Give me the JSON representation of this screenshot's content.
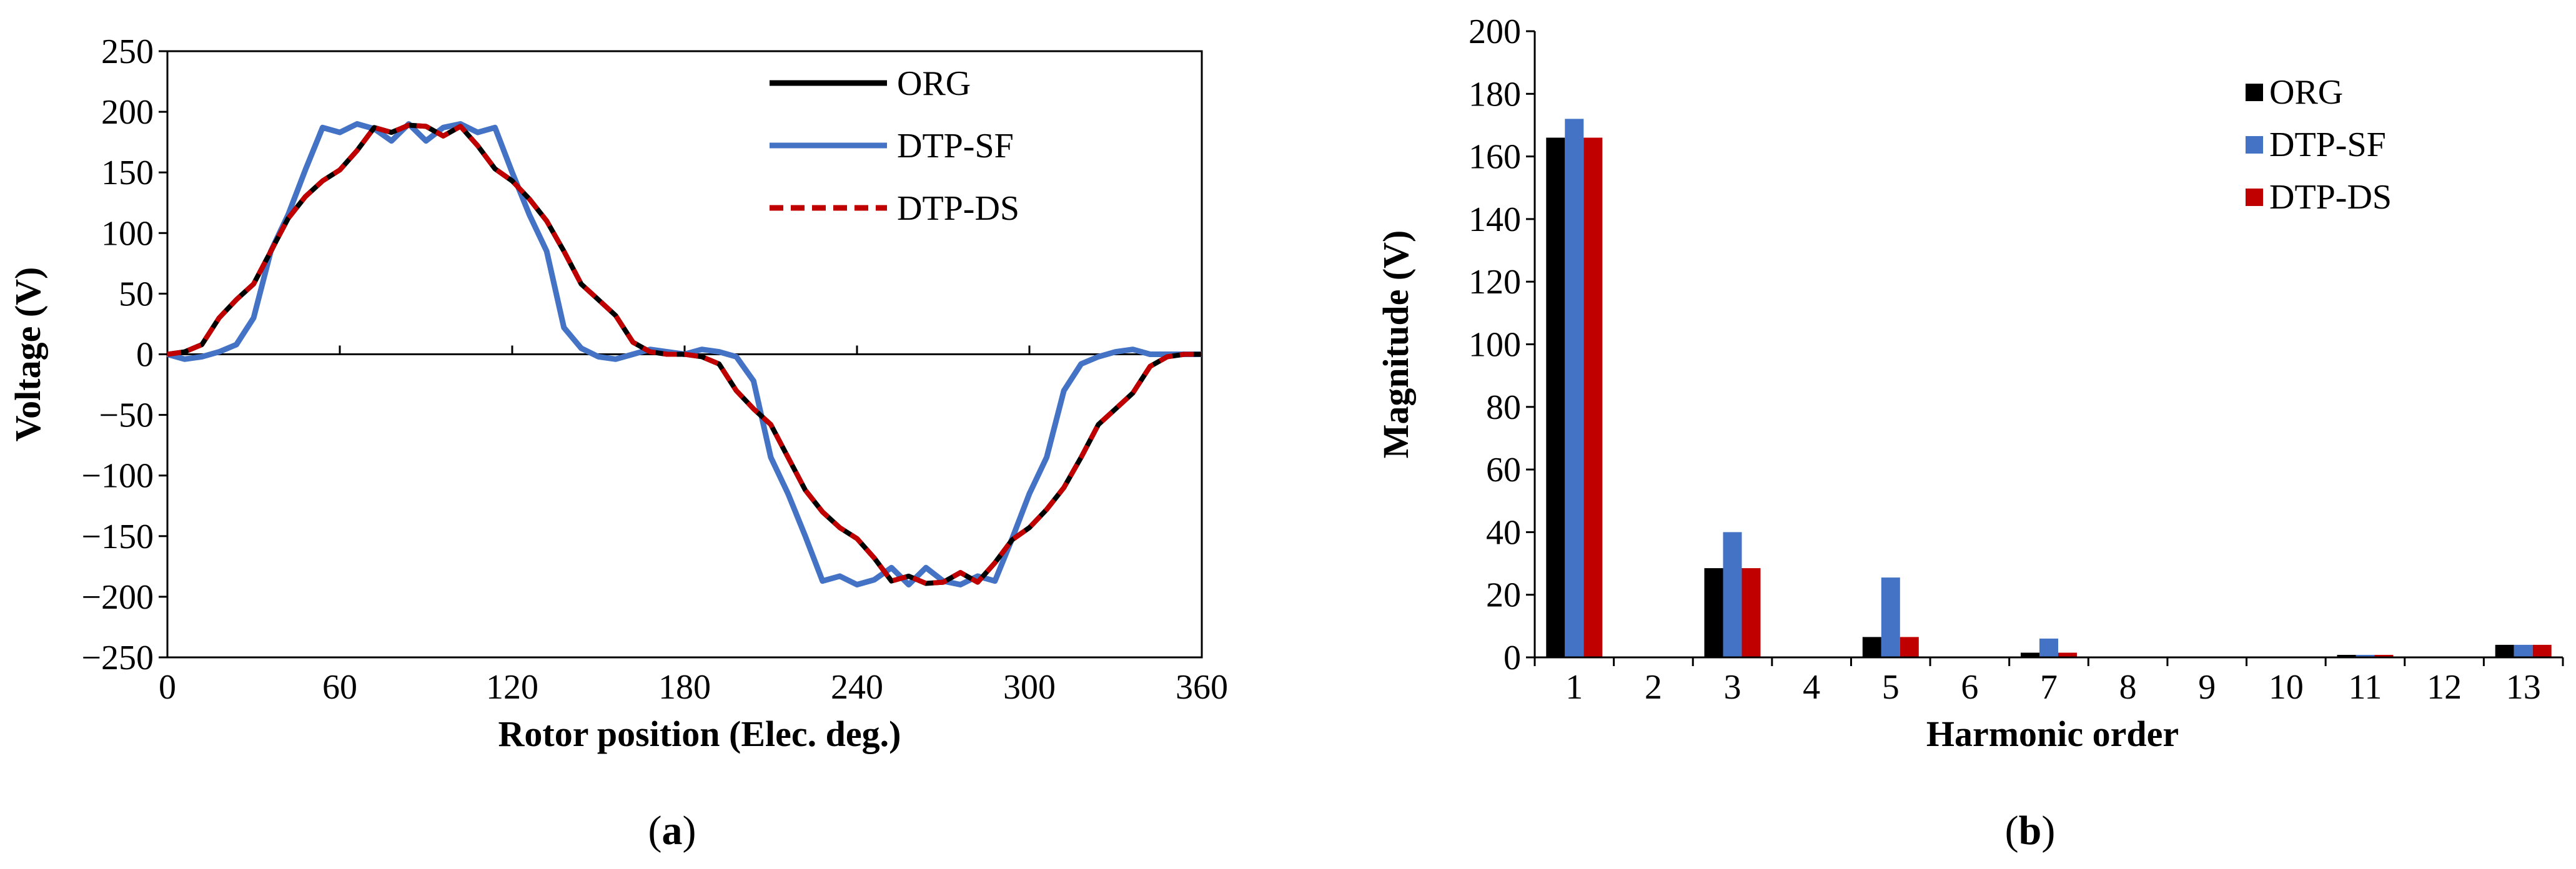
{
  "chart_data": [
    {
      "type": "line",
      "panel_label": "a",
      "xlabel": "Rotor position (Elec. deg.)",
      "ylabel": "Voltage (V)",
      "xlim": [
        0,
        360
      ],
      "ylim": [
        -250,
        250
      ],
      "xticks": [
        0,
        60,
        120,
        180,
        240,
        300,
        360
      ],
      "yticks": [
        250,
        200,
        150,
        100,
        50,
        0,
        -50,
        -100,
        -150,
        -200,
        -250
      ],
      "ytick_labels": [
        "250",
        "200",
        "150",
        "100",
        "50",
        "0",
        "−50",
        "−100",
        "−150",
        "−200",
        "−250"
      ],
      "grid": false,
      "legend": "top-right",
      "series": [
        {
          "name": "ORG",
          "color": "#000000",
          "style": "solid",
          "x": [
            0,
            6,
            12,
            18,
            24,
            30,
            36,
            42,
            48,
            54,
            60,
            66,
            72,
            78,
            84,
            90,
            96,
            102,
            108,
            114,
            120,
            126,
            132,
            138,
            144,
            150,
            156,
            162,
            168,
            174,
            180,
            186,
            192,
            198,
            204,
            210,
            216,
            222,
            228,
            234,
            240,
            246,
            252,
            258,
            264,
            270,
            276,
            282,
            288,
            294,
            300,
            306,
            312,
            318,
            324,
            330,
            336,
            342,
            348,
            354,
            360
          ],
          "y": [
            0,
            2,
            8,
            30,
            45,
            58,
            85,
            112,
            130,
            143,
            152,
            168,
            187,
            183,
            189,
            188,
            180,
            188,
            172,
            153,
            143,
            128,
            110,
            85,
            58,
            45,
            32,
            10,
            2,
            0,
            0,
            -2,
            -8,
            -30,
            -45,
            -58,
            -85,
            -112,
            -130,
            -143,
            -152,
            -168,
            -187,
            -183,
            -189,
            -188,
            -180,
            -188,
            -172,
            -153,
            -143,
            -128,
            -110,
            -85,
            -58,
            -45,
            -32,
            -10,
            -2,
            0,
            0
          ]
        },
        {
          "name": "DTP-SF",
          "color": "#4472C4",
          "style": "solid",
          "x": [
            0,
            6,
            12,
            18,
            24,
            30,
            36,
            42,
            48,
            54,
            60,
            66,
            72,
            78,
            84,
            90,
            96,
            102,
            108,
            114,
            120,
            126,
            132,
            138,
            144,
            150,
            156,
            162,
            168,
            174,
            180,
            186,
            192,
            198,
            204,
            210,
            216,
            222,
            228,
            234,
            240,
            246,
            252,
            258,
            264,
            270,
            276,
            282,
            288,
            294,
            300,
            306,
            312,
            318,
            324,
            330,
            336,
            342,
            348,
            354,
            360
          ],
          "y": [
            0,
            -4,
            -2,
            2,
            8,
            30,
            85,
            115,
            152,
            187,
            183,
            190,
            186,
            176,
            190,
            176,
            187,
            190,
            183,
            187,
            150,
            115,
            85,
            22,
            5,
            -2,
            -4,
            0,
            4,
            2,
            0,
            4,
            2,
            -2,
            -22,
            -85,
            -115,
            -150,
            -187,
            -183,
            -190,
            -186,
            -176,
            -190,
            -176,
            -187,
            -190,
            -183,
            -187,
            -152,
            -115,
            -85,
            -30,
            -8,
            -2,
            2,
            4,
            0,
            0,
            0,
            0
          ]
        },
        {
          "name": "DTP-DS",
          "color": "#C00000",
          "style": "dashed",
          "x": [
            0,
            6,
            12,
            18,
            24,
            30,
            36,
            42,
            48,
            54,
            60,
            66,
            72,
            78,
            84,
            90,
            96,
            102,
            108,
            114,
            120,
            126,
            132,
            138,
            144,
            150,
            156,
            162,
            168,
            174,
            180,
            186,
            192,
            198,
            204,
            210,
            216,
            222,
            228,
            234,
            240,
            246,
            252,
            258,
            264,
            270,
            276,
            282,
            288,
            294,
            300,
            306,
            312,
            318,
            324,
            330,
            336,
            342,
            348,
            354,
            360
          ],
          "y": [
            0,
            2,
            8,
            30,
            45,
            58,
            85,
            112,
            130,
            143,
            152,
            168,
            187,
            183,
            189,
            188,
            180,
            188,
            172,
            153,
            143,
            128,
            110,
            85,
            58,
            45,
            32,
            10,
            2,
            0,
            0,
            -2,
            -8,
            -30,
            -45,
            -58,
            -85,
            -112,
            -130,
            -143,
            -152,
            -168,
            -187,
            -183,
            -189,
            -188,
            -180,
            -188,
            -172,
            -153,
            -143,
            -128,
            -110,
            -85,
            -58,
            -45,
            -32,
            -10,
            -2,
            0,
            0
          ]
        }
      ]
    },
    {
      "type": "bar",
      "panel_label": "b",
      "xlabel": "Harmonic order",
      "ylabel": "Magnitude (V)",
      "ylim": [
        0,
        200
      ],
      "yticks": [
        0,
        20,
        40,
        60,
        80,
        100,
        120,
        140,
        160,
        180,
        200
      ],
      "categories": [
        "1",
        "2",
        "3",
        "4",
        "5",
        "6",
        "7",
        "8",
        "9",
        "10",
        "11",
        "12",
        "13"
      ],
      "grid": false,
      "legend": "top-right",
      "series": [
        {
          "name": "ORG",
          "color": "#000000",
          "values": [
            166,
            0.3,
            28.5,
            0.2,
            6.5,
            0.2,
            1.5,
            0.1,
            0.1,
            0.1,
            0.8,
            0.2,
            4
          ]
        },
        {
          "name": "DTP-SF",
          "color": "#4472C4",
          "values": [
            172,
            0.3,
            40,
            0.2,
            25.5,
            0.2,
            6,
            0.1,
            0.1,
            0.1,
            0.8,
            0.2,
            4
          ]
        },
        {
          "name": "DTP-DS",
          "color": "#C00000",
          "values": [
            166,
            0.3,
            28.5,
            0.2,
            6.5,
            0.2,
            1.5,
            0.1,
            0.1,
            0.1,
            0.8,
            0.2,
            4
          ]
        }
      ]
    }
  ]
}
